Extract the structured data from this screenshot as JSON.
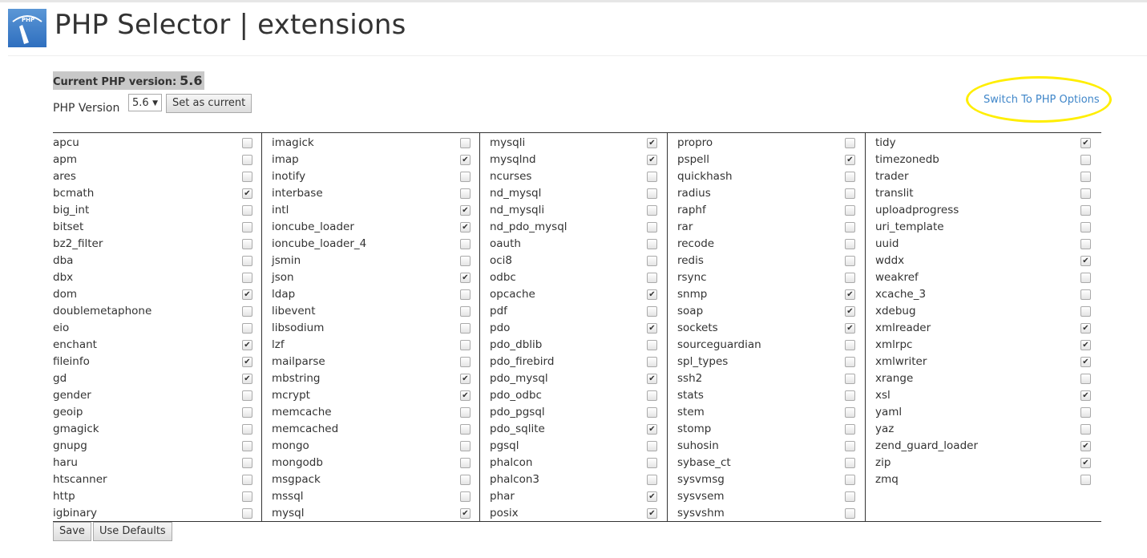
{
  "header": {
    "title": "PHP Selector | extensions",
    "logo_text": "PHP"
  },
  "current": {
    "label": "Current PHP version:",
    "value": "5.6"
  },
  "version": {
    "label": "PHP Version",
    "selected": "5.6",
    "set_button": "Set as current"
  },
  "switch_link": "Switch To PHP Options",
  "highlight_color": "#ffee00",
  "columns": [
    [
      [
        "apcu",
        0
      ],
      [
        "apm",
        0
      ],
      [
        "ares",
        0
      ],
      [
        "bcmath",
        1
      ],
      [
        "big_int",
        0
      ],
      [
        "bitset",
        0
      ],
      [
        "bz2_filter",
        0
      ],
      [
        "dba",
        0
      ],
      [
        "dbx",
        0
      ],
      [
        "dom",
        1
      ],
      [
        "doublemetaphone",
        0
      ],
      [
        "eio",
        0
      ],
      [
        "enchant",
        1
      ],
      [
        "fileinfo",
        1
      ],
      [
        "gd",
        1
      ],
      [
        "gender",
        0
      ],
      [
        "geoip",
        0
      ],
      [
        "gmagick",
        0
      ],
      [
        "gnupg",
        0
      ],
      [
        "haru",
        0
      ],
      [
        "htscanner",
        0
      ],
      [
        "http",
        0
      ],
      [
        "igbinary",
        0
      ]
    ],
    [
      [
        "imagick",
        0
      ],
      [
        "imap",
        1
      ],
      [
        "inotify",
        0
      ],
      [
        "interbase",
        0
      ],
      [
        "intl",
        1
      ],
      [
        "ioncube_loader",
        1
      ],
      [
        "ioncube_loader_4",
        0
      ],
      [
        "jsmin",
        0
      ],
      [
        "json",
        1
      ],
      [
        "ldap",
        0
      ],
      [
        "libevent",
        0
      ],
      [
        "libsodium",
        0
      ],
      [
        "lzf",
        0
      ],
      [
        "mailparse",
        0
      ],
      [
        "mbstring",
        1
      ],
      [
        "mcrypt",
        1
      ],
      [
        "memcache",
        0
      ],
      [
        "memcached",
        0
      ],
      [
        "mongo",
        0
      ],
      [
        "mongodb",
        0
      ],
      [
        "msgpack",
        0
      ],
      [
        "mssql",
        0
      ],
      [
        "mysql",
        1
      ]
    ],
    [
      [
        "mysqli",
        1
      ],
      [
        "mysqlnd",
        1
      ],
      [
        "ncurses",
        0
      ],
      [
        "nd_mysql",
        0
      ],
      [
        "nd_mysqli",
        0
      ],
      [
        "nd_pdo_mysql",
        0
      ],
      [
        "oauth",
        0
      ],
      [
        "oci8",
        0
      ],
      [
        "odbc",
        0
      ],
      [
        "opcache",
        1
      ],
      [
        "pdf",
        0
      ],
      [
        "pdo",
        1
      ],
      [
        "pdo_dblib",
        0
      ],
      [
        "pdo_firebird",
        0
      ],
      [
        "pdo_mysql",
        1
      ],
      [
        "pdo_odbc",
        0
      ],
      [
        "pdo_pgsql",
        0
      ],
      [
        "pdo_sqlite",
        1
      ],
      [
        "pgsql",
        0
      ],
      [
        "phalcon",
        0
      ],
      [
        "phalcon3",
        0
      ],
      [
        "phar",
        1
      ],
      [
        "posix",
        1
      ]
    ],
    [
      [
        "propro",
        0
      ],
      [
        "pspell",
        1
      ],
      [
        "quickhash",
        0
      ],
      [
        "radius",
        0
      ],
      [
        "raphf",
        0
      ],
      [
        "rar",
        0
      ],
      [
        "recode",
        0
      ],
      [
        "redis",
        0
      ],
      [
        "rsync",
        0
      ],
      [
        "snmp",
        1
      ],
      [
        "soap",
        1
      ],
      [
        "sockets",
        1
      ],
      [
        "sourceguardian",
        0
      ],
      [
        "spl_types",
        0
      ],
      [
        "ssh2",
        0
      ],
      [
        "stats",
        0
      ],
      [
        "stem",
        0
      ],
      [
        "stomp",
        0
      ],
      [
        "suhosin",
        0
      ],
      [
        "sybase_ct",
        0
      ],
      [
        "sysvmsg",
        0
      ],
      [
        "sysvsem",
        0
      ],
      [
        "sysvshm",
        0
      ]
    ],
    [
      [
        "tidy",
        1
      ],
      [
        "timezonedb",
        0
      ],
      [
        "trader",
        0
      ],
      [
        "translit",
        0
      ],
      [
        "uploadprogress",
        0
      ],
      [
        "uri_template",
        0
      ],
      [
        "uuid",
        0
      ],
      [
        "wddx",
        1
      ],
      [
        "weakref",
        0
      ],
      [
        "xcache_3",
        0
      ],
      [
        "xdebug",
        0
      ],
      [
        "xmlreader",
        1
      ],
      [
        "xmlrpc",
        1
      ],
      [
        "xmlwriter",
        1
      ],
      [
        "xrange",
        0
      ],
      [
        "xsl",
        1
      ],
      [
        "yaml",
        0
      ],
      [
        "yaz",
        0
      ],
      [
        "zend_guard_loader",
        1
      ],
      [
        "zip",
        1
      ],
      [
        "zmq",
        0
      ]
    ]
  ],
  "footer": {
    "save": "Save",
    "defaults": "Use Defaults"
  }
}
